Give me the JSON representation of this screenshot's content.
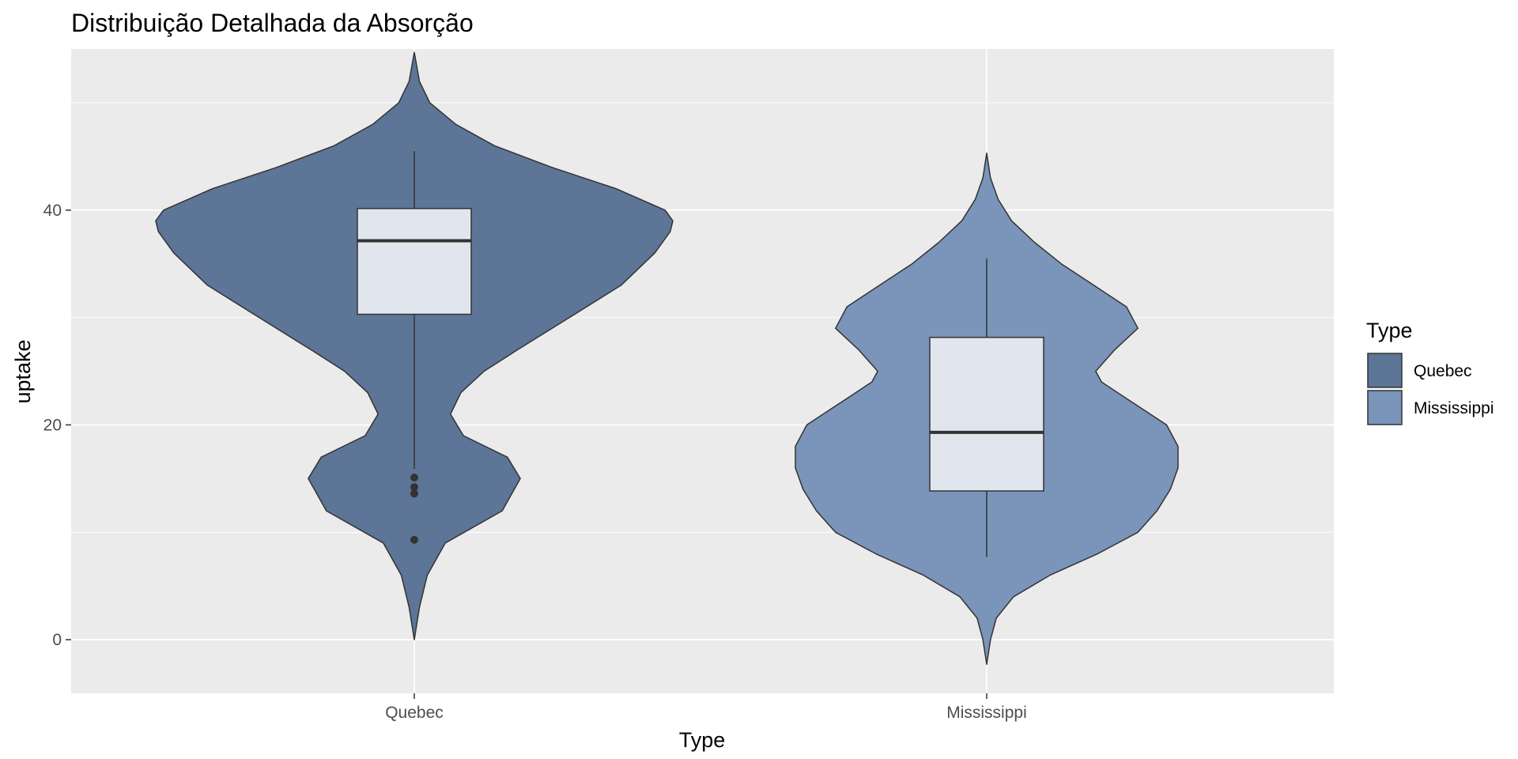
{
  "chart_data": {
    "type": "violin",
    "title": "Distribuição Detalhada da Absorção",
    "xlabel": "Type",
    "ylabel": "uptake",
    "categories": [
      "Quebec",
      "Mississippi"
    ],
    "y_ticks": [
      0,
      20,
      40
    ],
    "ylim": [
      -5,
      55
    ],
    "grid": true,
    "legend": {
      "title": "Type",
      "position": "right",
      "entries": [
        "Quebec",
        "Mississippi"
      ]
    },
    "colors": {
      "panel_background": "#ebebeb",
      "grid": "#ffffff",
      "Quebec": "#5d7596",
      "Mississippi": "#7a94ba",
      "box_fill": "#e1e5ed",
      "outline": "#333333"
    },
    "series": [
      {
        "name": "Quebec",
        "box": {
          "min": 15.9,
          "q1": 30.3,
          "median": 37.15,
          "q3": 40.15,
          "max": 45.5
        },
        "outliers": [
          9.3,
          13.6,
          14.2,
          15.1
        ],
        "violin_range": [
          0,
          54.7
        ],
        "density_profile": [
          [
            0,
            0.0
          ],
          [
            3,
            0.02
          ],
          [
            6,
            0.05
          ],
          [
            9,
            0.12
          ],
          [
            12,
            0.34
          ],
          [
            15,
            0.41
          ],
          [
            17,
            0.36
          ],
          [
            19,
            0.19
          ],
          [
            21,
            0.14
          ],
          [
            23,
            0.18
          ],
          [
            25,
            0.27
          ],
          [
            27,
            0.4
          ],
          [
            30,
            0.6
          ],
          [
            33,
            0.8
          ],
          [
            36,
            0.93
          ],
          [
            38,
            0.99
          ],
          [
            39,
            1.0
          ],
          [
            40,
            0.97
          ],
          [
            42,
            0.78
          ],
          [
            44,
            0.53
          ],
          [
            46,
            0.31
          ],
          [
            48,
            0.16
          ],
          [
            50,
            0.06
          ],
          [
            52,
            0.02
          ],
          [
            54.7,
            0.0
          ]
        ]
      },
      {
        "name": "Mississippi",
        "box": {
          "min": 7.7,
          "q1": 13.85,
          "median": 19.3,
          "q3": 28.15,
          "max": 35.5
        },
        "outliers": [],
        "violin_range": [
          -2.3,
          45.3
        ],
        "density_profile": [
          [
            -2.3,
            0.0
          ],
          [
            0,
            0.02
          ],
          [
            2,
            0.05
          ],
          [
            4,
            0.14
          ],
          [
            6,
            0.33
          ],
          [
            8,
            0.58
          ],
          [
            10,
            0.79
          ],
          [
            12,
            0.89
          ],
          [
            14,
            0.96
          ],
          [
            16,
            1.0
          ],
          [
            18,
            1.0
          ],
          [
            20,
            0.94
          ],
          [
            22,
            0.77
          ],
          [
            24,
            0.6
          ],
          [
            25,
            0.57
          ],
          [
            27,
            0.67
          ],
          [
            29,
            0.79
          ],
          [
            31,
            0.73
          ],
          [
            33,
            0.56
          ],
          [
            35,
            0.39
          ],
          [
            37,
            0.25
          ],
          [
            39,
            0.13
          ],
          [
            41,
            0.06
          ],
          [
            43,
            0.02
          ],
          [
            45.3,
            0.0
          ]
        ]
      }
    ]
  }
}
